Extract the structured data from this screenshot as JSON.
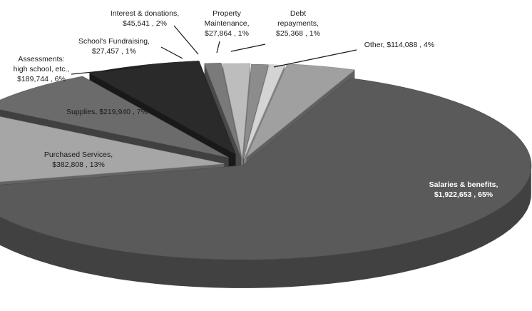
{
  "chart_data": {
    "type": "pie",
    "style": "3d-exploded",
    "title": "",
    "slices": [
      {
        "name": "Salaries & benefits",
        "value": 1922653,
        "value_label": "$1,922,653",
        "percent_label": "65%",
        "color": "#5a5a5a"
      },
      {
        "name": "Purchased Services",
        "value": 382808,
        "value_label": "$382,808",
        "percent_label": "13%",
        "color": "#a6a6a6"
      },
      {
        "name": "Supplies",
        "value": 219940,
        "value_label": "$219,940",
        "percent_label": "7%",
        "color": "#6b6b6b"
      },
      {
        "name": "Assessments: high school, etc.",
        "value": 189744,
        "value_label": "$189,744",
        "percent_label": "6%",
        "color": "#2a2a2a"
      },
      {
        "name": "School's Fundraising",
        "value": 27457,
        "value_label": "$27,457",
        "percent_label": "1%",
        "color": "#7a7a7a"
      },
      {
        "name": "Interest & donations",
        "value": 45541,
        "value_label": "$45,541",
        "percent_label": "2%",
        "color": "#bdbdbd"
      },
      {
        "name": "Property Maintenance",
        "value": 27864,
        "value_label": "$27,864",
        "percent_label": "1%",
        "color": "#8c8c8c"
      },
      {
        "name": "Debt repayments",
        "value": 25368,
        "value_label": "$25,368",
        "percent_label": "1%",
        "color": "#d4d4d4"
      },
      {
        "name": "Other",
        "value": 114088,
        "value_label": "$114,088",
        "percent_label": "4%",
        "color": "#a0a0a0"
      }
    ]
  },
  "labels": [
    {
      "lines": [
        "Salaries & benefits,",
        "$1,922,653 , 65%"
      ]
    },
    {
      "lines": [
        "Purchased Services,",
        "$382,808 , 13%"
      ]
    },
    {
      "lines": [
        "Supplies,  $219,940 , 7%"
      ]
    },
    {
      "lines": [
        "Assessments:",
        "high school,  etc.,",
        "$189,744 , 6%"
      ]
    },
    {
      "lines": [
        "School's  Fundraising,",
        "$27,457 , 1%"
      ]
    },
    {
      "lines": [
        "Interest & donations,",
        "$45,541 , 2%"
      ]
    },
    {
      "lines": [
        "Property",
        "Maintenance,",
        "$27,864 , 1%"
      ]
    },
    {
      "lines": [
        "Debt",
        "repayments,",
        "$25,368 , 1%"
      ]
    },
    {
      "lines": [
        "Other,  $114,088 , 4%"
      ]
    }
  ]
}
